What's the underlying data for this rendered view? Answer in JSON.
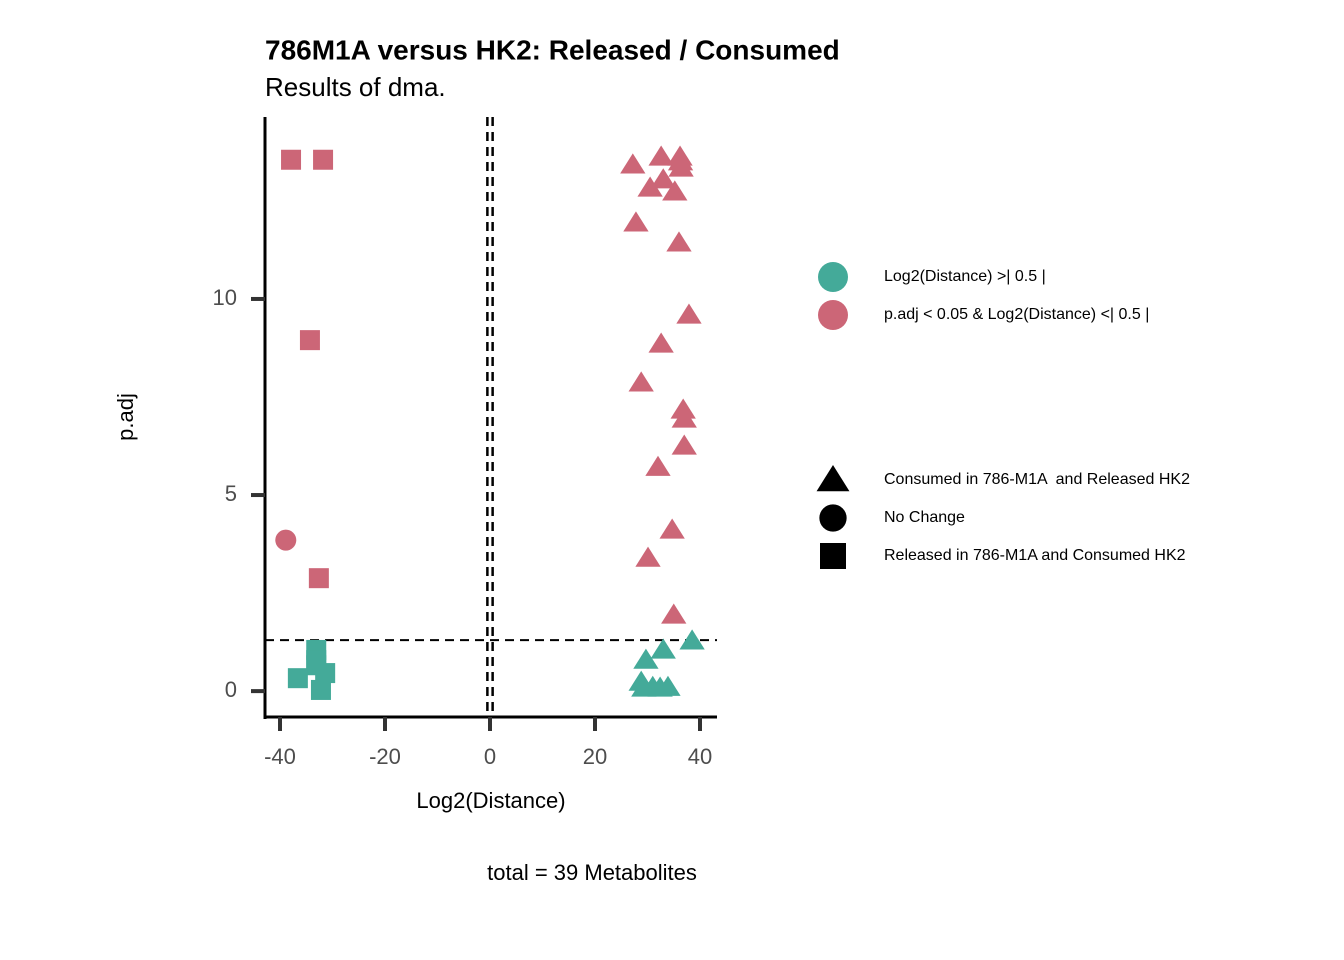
{
  "chart_data": {
    "type": "scatter",
    "title": "786M1A versus HK2: Released / Consumed",
    "subtitle": "Results of dma.",
    "x_label": "Log2(Distance)",
    "y_label": "p.adj",
    "caption": "total = 39 Metabolites",
    "xlim": [
      -42.86,
      43.24
    ],
    "ylim": [
      -0.66,
      14.64
    ],
    "xticks": [
      -40,
      -20,
      0,
      20,
      40
    ],
    "yticks": [
      0,
      5,
      10
    ],
    "vlines": [
      -0.5,
      0.5
    ],
    "hline": 1.3,
    "color_legend": [
      {
        "name": "Log2(Distance) >| 0.5 |",
        "color": "#44aa99"
      },
      {
        "name": "p.adj < 0.05 & Log2(Distance) <| 0.5 |",
        "color": "#cc6677"
      }
    ],
    "shape_legend": [
      {
        "name": "Consumed in 786-M1A  and Released HK2",
        "shape": "triangle"
      },
      {
        "name": "No Change",
        "shape": "circle"
      },
      {
        "name": "Released in 786-M1A and Consumed HK2",
        "shape": "square"
      }
    ],
    "series": [
      {
        "color": "#cc6677",
        "shape": "square",
        "x": [
          -37.9,
          -31.8,
          -34.3,
          -32.6
        ],
        "y": [
          13.55,
          13.55,
          8.95,
          2.88
        ]
      },
      {
        "color": "#cc6677",
        "shape": "circle",
        "x": [
          -38.9
        ],
        "y": [
          3.85
        ]
      },
      {
        "color": "#cc6677",
        "shape": "triangle",
        "x": [
          27.2,
          32.6,
          36.2,
          36.4,
          33.0,
          30.5,
          35.2,
          27.8,
          36.0,
          37.9,
          32.6,
          28.8,
          36.8,
          37.0,
          37.0,
          32.0,
          34.7,
          30.1,
          35.0,
          36.3
        ],
        "y": [
          13.42,
          13.62,
          13.62,
          13.34,
          13.04,
          12.83,
          12.73,
          11.94,
          11.43,
          9.59,
          8.85,
          7.86,
          7.17,
          6.94,
          6.25,
          5.71,
          4.11,
          3.39,
          1.94,
          13.5
        ]
      },
      {
        "color": "#44aa99",
        "shape": "triangle",
        "x": [
          38.5,
          33.0,
          29.7,
          28.8,
          31.0,
          33.9,
          29.3,
          32.4
        ],
        "y": [
          1.28,
          1.05,
          0.79,
          0.23,
          0.1,
          0.1,
          0.08,
          0.08
        ]
      },
      {
        "color": "#44aa99",
        "shape": "square",
        "x": [
          -33.1,
          -33.1,
          -36.6,
          -31.4,
          -32.2,
          -33.1
        ],
        "y": [
          1.05,
          0.66,
          0.33,
          0.46,
          0.03,
          0.79
        ]
      }
    ]
  }
}
